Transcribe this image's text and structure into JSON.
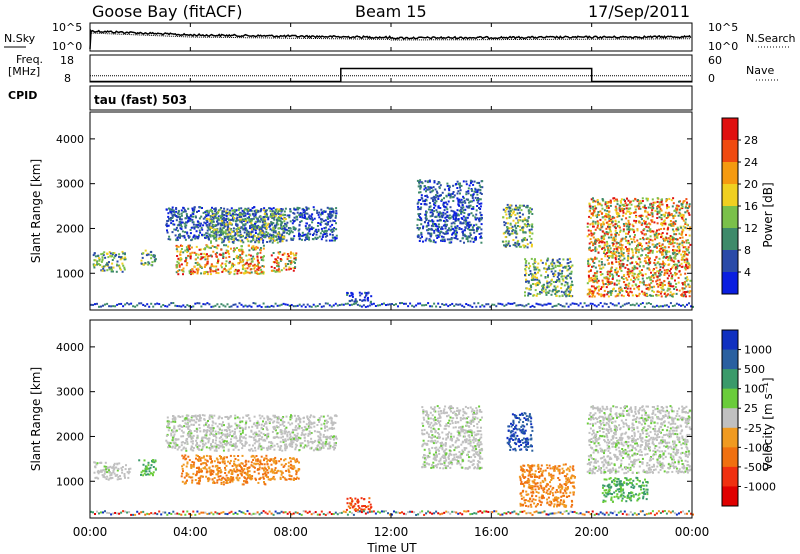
{
  "header": {
    "station": "Goose Bay (fitACF)",
    "beam": "Beam 15",
    "date": "17/Sep/2011"
  },
  "noise_panel": {
    "left_label": "N.Sky",
    "right_label": "N.Search",
    "left_ticks": [
      "10^5",
      "10^0"
    ],
    "right_ticks": [
      "10^5",
      "10^0"
    ]
  },
  "freq_panel": {
    "left_label_line1": "Freq.",
    "left_label_line2": "[MHz]",
    "right_label": "Nave",
    "left_ticks": [
      "18",
      "8"
    ],
    "right_ticks": [
      "60",
      "0"
    ],
    "freq_mhz": 10.3,
    "nave_segments": [
      {
        "start_hr": 0,
        "end_hr": 10,
        "value": 1
      },
      {
        "start_hr": 10,
        "end_hr": 20,
        "value": 30
      },
      {
        "start_hr": 20,
        "end_hr": 24,
        "value": 1
      }
    ]
  },
  "cpid": {
    "label": "CPID",
    "value": "tau (fast) 503"
  },
  "x_axis": {
    "label": "Time UT",
    "ticks": [
      "00:00",
      "04:00",
      "08:00",
      "12:00",
      "16:00",
      "20:00",
      "00:00"
    ]
  },
  "power_panel": {
    "ylabel": "Slant Range [km]",
    "yticks": [
      "1000",
      "2000",
      "3000",
      "4000"
    ]
  },
  "velocity_panel": {
    "ylabel": "Slant Range [km]",
    "yticks": [
      "1000",
      "2000",
      "3000",
      "4000"
    ]
  },
  "power_colorbar": {
    "title": "Power [dB]",
    "labels": [
      "4",
      "8",
      "12",
      "16",
      "20",
      "24",
      "28"
    ],
    "colors": [
      "#0a1ee0",
      "#2a4aa8",
      "#3e8a6a",
      "#7ac04a",
      "#f0d020",
      "#f59a10",
      "#f04a10",
      "#e01010"
    ]
  },
  "velocity_colorbar": {
    "title": "Velocity [m s⁻¹]",
    "labels": [
      "1000",
      "500",
      "100",
      "25",
      "-25",
      "-100",
      "-500",
      "-1000"
    ],
    "colors": [
      "#1030c0",
      "#2a60a0",
      "#3a9a6a",
      "#6acc3a",
      "#c0c0c0",
      "#f09a20",
      "#f07010",
      "#f03010",
      "#e00000"
    ]
  },
  "chart_data": {
    "type": "heatmap",
    "title": "Goose Bay (fitACF)   Beam 15   17/Sep/2011",
    "xlabel": "Time UT",
    "ylabel": "Slant Range [km]",
    "xlim_hours": [
      0,
      24
    ],
    "ylim_km": [
      180,
      4600
    ],
    "power_clusters": [
      {
        "t0": 0.1,
        "t1": 1.4,
        "r0": 1050,
        "r1": 1500,
        "level": "mid"
      },
      {
        "t0": 2.0,
        "t1": 2.6,
        "r0": 1200,
        "r1": 1550,
        "level": "mid"
      },
      {
        "t0": 3.0,
        "t1": 9.8,
        "r0": 1750,
        "r1": 2500,
        "level": "low"
      },
      {
        "t0": 4.6,
        "t1": 7.8,
        "r0": 1700,
        "r1": 2450,
        "level": "mid"
      },
      {
        "t0": 3.4,
        "t1": 6.9,
        "r0": 1000,
        "r1": 1650,
        "level": "high"
      },
      {
        "t0": 7.2,
        "t1": 8.2,
        "r0": 1050,
        "r1": 1500,
        "level": "high"
      },
      {
        "t0": 10.2,
        "t1": 11.2,
        "r0": 350,
        "r1": 600,
        "level": "low"
      },
      {
        "t0": 13.0,
        "t1": 15.6,
        "r0": 1700,
        "r1": 3100,
        "level": "low"
      },
      {
        "t0": 16.4,
        "t1": 17.6,
        "r0": 1600,
        "r1": 2550,
        "level": "mid"
      },
      {
        "t0": 17.3,
        "t1": 19.2,
        "r0": 500,
        "r1": 1350,
        "level": "mid"
      },
      {
        "t0": 19.8,
        "t1": 23.9,
        "r0": 500,
        "r1": 2700,
        "level": "high"
      }
    ],
    "velocity_clusters": [
      {
        "t0": 0.1,
        "t1": 1.6,
        "r0": 1050,
        "r1": 1450,
        "level": "-25..25"
      },
      {
        "t0": 3.0,
        "t1": 9.8,
        "r0": 1700,
        "r1": 2500,
        "level": "-25..25"
      },
      {
        "t0": 1.9,
        "t1": 2.6,
        "r0": 1150,
        "r1": 1500,
        "level": "25..100"
      },
      {
        "t0": 3.6,
        "t1": 7.0,
        "r0": 950,
        "r1": 1600,
        "level": "-100..-25"
      },
      {
        "t0": 7.0,
        "t1": 8.3,
        "r0": 1050,
        "r1": 1550,
        "level": "-100..-25"
      },
      {
        "t0": 10.2,
        "t1": 11.2,
        "r0": 350,
        "r1": 650,
        "level": "-500..-100"
      },
      {
        "t0": 13.2,
        "t1": 15.6,
        "r0": 1300,
        "r1": 2700,
        "level": "-25..25"
      },
      {
        "t0": 16.6,
        "t1": 17.6,
        "r0": 1700,
        "r1": 2550,
        "level": "500..1000"
      },
      {
        "t0": 17.1,
        "t1": 19.3,
        "r0": 450,
        "r1": 1400,
        "level": "-100..-25"
      },
      {
        "t0": 19.8,
        "t1": 23.9,
        "r0": 1200,
        "r1": 2700,
        "level": "-25..25"
      },
      {
        "t0": 20.4,
        "t1": 22.2,
        "r0": 550,
        "r1": 1100,
        "level": "25..100"
      }
    ]
  }
}
